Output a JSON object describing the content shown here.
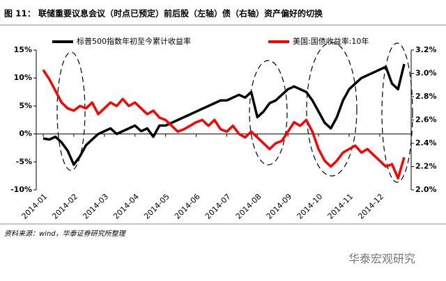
{
  "chart_data": {
    "type": "line",
    "title": "图 11：  联储重要议息会议（时点已预定）前后股（左轴）债（右轴）资产偏好的切换",
    "source": "资料来源：wind，华泰证券研究所整理",
    "watermark": "华泰宏观研究",
    "categories": [
      "2014-01",
      null,
      null,
      null,
      null,
      "2014-02",
      null,
      null,
      null,
      null,
      "2014-03",
      null,
      null,
      null,
      null,
      "2014-04",
      null,
      null,
      null,
      null,
      "2014-05",
      null,
      null,
      null,
      null,
      "2014-06",
      null,
      null,
      null,
      null,
      "2014-07",
      null,
      null,
      null,
      null,
      "2014-08",
      null,
      null,
      null,
      null,
      "2014-09",
      null,
      null,
      null,
      null,
      "2014-10",
      null,
      null,
      null,
      null,
      "2014-11",
      null,
      null,
      null,
      null,
      "2014-12",
      null,
      null,
      null,
      null
    ],
    "series": [
      {
        "name": "标普500指数年初至今累计收益率",
        "color": "#000000",
        "axis": "y",
        "values": [
          -0.8,
          -1,
          -0.5,
          -1.5,
          -3,
          -5.5,
          -4,
          -2,
          -1,
          0,
          0.5,
          1,
          0,
          0.5,
          1,
          1.5,
          0.5,
          1,
          -0.5,
          1.5,
          1.5,
          2,
          2.5,
          3,
          3.5,
          4,
          4.5,
          5,
          5.5,
          6,
          6,
          6.5,
          7,
          6.5,
          7.5,
          3,
          4,
          5.5,
          6,
          7,
          8,
          8.5,
          8,
          7.5,
          6,
          4,
          2,
          1,
          3,
          6,
          8,
          9,
          10,
          10.5,
          11,
          11.5,
          12,
          9,
          8,
          12.5
        ]
      },
      {
        "name": "美国:国债收益率:10年",
        "color": "#ff0000",
        "axis": "y2",
        "values": [
          3.03,
          2.95,
          2.85,
          2.75,
          2.7,
          2.68,
          2.72,
          2.7,
          2.75,
          2.65,
          2.7,
          2.75,
          2.72,
          2.78,
          2.72,
          2.75,
          2.7,
          2.65,
          2.68,
          2.62,
          2.6,
          2.55,
          2.5,
          2.52,
          2.55,
          2.58,
          2.6,
          2.55,
          2.6,
          2.52,
          2.5,
          2.55,
          2.48,
          2.45,
          2.5,
          2.45,
          2.4,
          2.35,
          2.4,
          2.42,
          2.5,
          2.58,
          2.55,
          2.6,
          2.5,
          2.35,
          2.25,
          2.2,
          2.25,
          2.32,
          2.35,
          2.38,
          2.32,
          2.35,
          2.3,
          2.25,
          2.2,
          2.22,
          2.1,
          2.28
        ]
      }
    ],
    "ylim": [
      -10,
      15
    ],
    "yticks": [
      {
        "value": -10,
        "label": "-10%"
      },
      {
        "value": -5,
        "label": "-5%"
      },
      {
        "value": 0,
        "label": "0%"
      },
      {
        "value": 5,
        "label": "5%"
      },
      {
        "value": 10,
        "label": "10%"
      },
      {
        "value": 15,
        "label": "15%"
      }
    ],
    "y2lim": [
      2.0,
      3.2
    ],
    "y2ticks": [
      {
        "value": 2.0,
        "label": "2.0%"
      },
      {
        "value": 2.2,
        "label": "2.2%"
      },
      {
        "value": 2.4,
        "label": "2.4%"
      },
      {
        "value": 2.6,
        "label": "2.6%"
      },
      {
        "value": 2.8,
        "label": "2.8%"
      },
      {
        "value": 3.0,
        "label": "3.0%"
      },
      {
        "value": 3.2,
        "label": "3.2%"
      }
    ]
  }
}
